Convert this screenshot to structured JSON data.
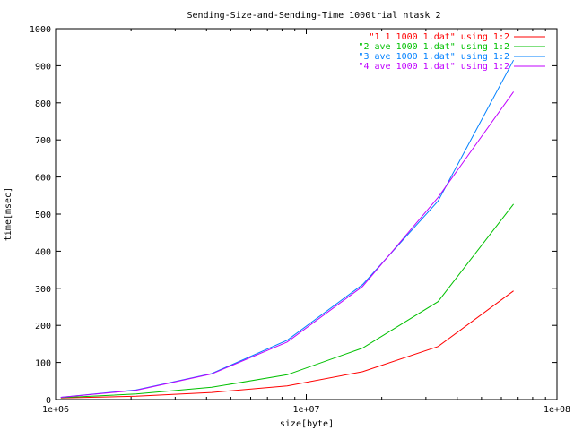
{
  "chart_data": {
    "type": "line",
    "title": "Sending-Size-and-Sending-Time 1000trial ntask 2",
    "xlabel": "size[byte]",
    "ylabel": "time[msec]",
    "xscale": "log",
    "xlim": [
      1000000,
      100000000
    ],
    "ylim": [
      0,
      1000
    ],
    "xticks": [
      1000000,
      10000000,
      100000000
    ],
    "xtick_labels": [
      "1e+06",
      "1e+07",
      "1e+08"
    ],
    "yticks": [
      0,
      100,
      200,
      300,
      400,
      500,
      600,
      700,
      800,
      900,
      1000
    ],
    "grid": false,
    "legend_position": "top-right",
    "x": [
      1048576,
      2097152,
      4194304,
      8388608,
      16777216,
      33554432,
      67108864
    ],
    "series": [
      {
        "name": "\"1 1 1000 1.dat\" using 1:2",
        "color": "#ff0000",
        "values": [
          4,
          9,
          19,
          37,
          75,
          143,
          293
        ]
      },
      {
        "name": "\"2 ave 1000 1.dat\" using 1:2",
        "color": "#00c000",
        "values": [
          5,
          15,
          33,
          67,
          139,
          264,
          527
        ]
      },
      {
        "name": "\"3 ave 1000 1.dat\" using 1:2",
        "color": "#0080ff",
        "values": [
          6,
          26,
          70,
          160,
          310,
          535,
          915
        ]
      },
      {
        "name": "\"4 ave 1000 1.dat\" using 1:2",
        "color": "#c000ff",
        "values": [
          6,
          25,
          69,
          155,
          305,
          545,
          830
        ]
      }
    ]
  }
}
